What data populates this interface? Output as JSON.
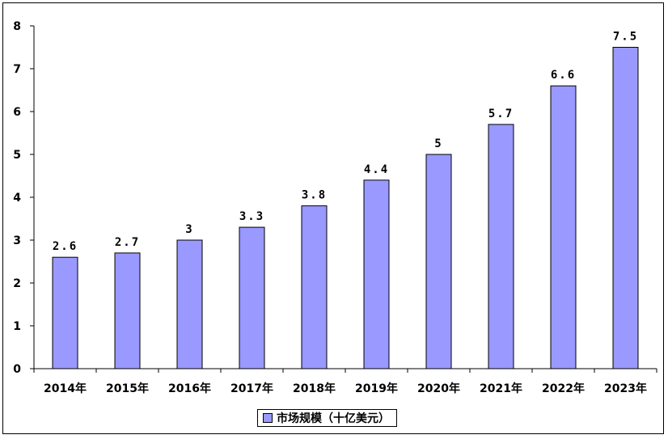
{
  "chart_data": {
    "type": "bar",
    "categories": [
      "2014年",
      "2015年",
      "2016年",
      "2017年",
      "2018年",
      "2019年",
      "2020年",
      "2021年",
      "2022年",
      "2023年"
    ],
    "series": [
      {
        "name": "市场规模（十亿美元）",
        "values": [
          2.6,
          2.7,
          3,
          3.3,
          3.8,
          4.4,
          5,
          5.7,
          6.6,
          7.5
        ],
        "labels": [
          "2.6",
          "2.7",
          "3",
          "3.3",
          "3.8",
          "4.4",
          "5",
          "5.7",
          "6.6",
          "7.5"
        ]
      }
    ],
    "ylim": [
      0,
      8
    ],
    "yticks": [
      0,
      1,
      2,
      3,
      4,
      5,
      6,
      7,
      8
    ],
    "grid": false,
    "legend_position": "bottom",
    "colors": {
      "bar": "#9999ff",
      "bar_stroke": "#000000"
    }
  }
}
